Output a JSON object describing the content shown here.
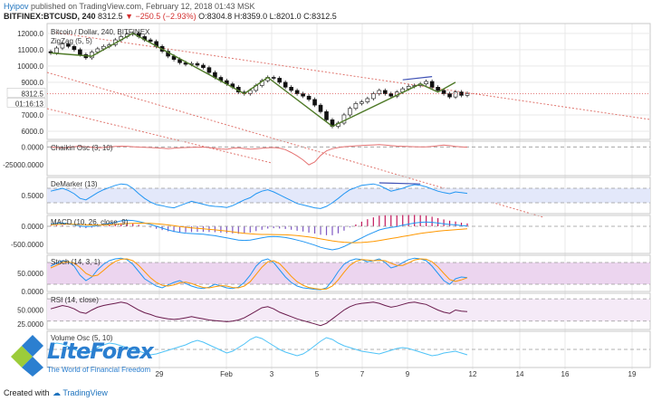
{
  "header": {
    "author": "Hyipov",
    "published_text": "published on TradingView.com, February 12, 2018 01:43 MSK",
    "symbol": "BITFINEX:BTCUSD, 240",
    "last": "8312.5",
    "change": "−250.5 (−2.93%)",
    "ohlc": "O:8304.8 H:8359.0 L:8201.0 C:8312.5"
  },
  "footer": {
    "created_with": "Created with",
    "brand": "TradingView"
  },
  "logo": {
    "name": "LiteForex",
    "tagline": "The World of Financial Freedom"
  },
  "colors": {
    "grid": "#e9e9e9",
    "channel": "#e0766f",
    "trendline": "#4f7a28",
    "osc_blue": "#2196f3",
    "osc_orange": "#ff9800",
    "osc_purple": "#8e24aa",
    "rsi": "#6a1b4d",
    "chaikin": "#e57373",
    "fill_blue": "#e3e8fa",
    "fill_purple": "#ecd5ef"
  },
  "chart_data": {
    "type": "candlestick",
    "x_ticks": [
      "29",
      "Feb",
      "3",
      "5",
      "7",
      "9",
      "12",
      "14",
      "16",
      "19"
    ],
    "price": {
      "title": "Bitcoin / Dollar, 240, BITFINEX",
      "marker_label": "ZigZag (5, 5)",
      "ylim": [
        5500,
        12600
      ],
      "y_ticks": [
        "12000.0",
        "11000.0",
        "10000.0",
        "9000.0",
        "8312.5",
        "01:16:13",
        "7000.0",
        "6000.0"
      ],
      "last_price": 8312.5,
      "countdown": "01:16:13",
      "closes": [
        10800,
        11100,
        11350,
        11200,
        11000,
        10700,
        10500,
        10850,
        11050,
        11200,
        11300,
        11600,
        11800,
        11950,
        12000,
        11800,
        11600,
        11500,
        11200,
        10900,
        10600,
        10400,
        10200,
        10100,
        10150,
        10050,
        9900,
        9600,
        9300,
        9100,
        8900,
        8700,
        8400,
        8300,
        8500,
        8800,
        9100,
        9300,
        9250,
        9000,
        8700,
        8500,
        8300,
        8150,
        7950,
        7600,
        7200,
        6700,
        6300,
        6500,
        7000,
        7400,
        7700,
        7800,
        8000,
        8300,
        8500,
        8300,
        8150,
        8400,
        8600,
        8750,
        8800,
        8900,
        9050,
        8700,
        8500,
        8300,
        8100,
        8400,
        8200,
        8312.5
      ],
      "zigzag": [
        [
          0,
          10800
        ],
        [
          7,
          10600
        ],
        [
          14,
          12000
        ],
        [
          33,
          8300
        ],
        [
          37,
          9300
        ],
        [
          48,
          6300
        ],
        [
          63,
          8900
        ],
        [
          66,
          8400
        ],
        [
          69,
          9000
        ]
      ]
    },
    "chaikin": {
      "label": "Chaikin Osc (3, 10)",
      "y_ticks": [
        "0.0000",
        "-25000.0000"
      ],
      "ylim": [
        -40000,
        8000
      ],
      "values": [
        0,
        -900,
        -1300,
        -700,
        400,
        900,
        300,
        -500,
        -1200,
        -800,
        200,
        700,
        1100,
        900,
        300,
        -200,
        -500,
        -900,
        -1300,
        -1900,
        -2500,
        -1700,
        -1200,
        -900,
        -600,
        -300,
        -200,
        -900,
        -1700,
        -2800,
        -3300,
        -1800,
        -1200,
        -2200,
        -3100,
        -2600,
        -1900,
        -1200,
        -900,
        -1600,
        -3800,
        -7800,
        -12500,
        -18000,
        -25000,
        -21000,
        -12000,
        -5500,
        -2500,
        -900,
        300,
        900,
        1600,
        2100,
        2500,
        2800,
        3200,
        2600,
        1800,
        1200,
        900,
        600,
        300,
        200,
        100,
        800,
        1700,
        2600,
        1800,
        700,
        0,
        -300
      ]
    },
    "demarker": {
      "label": "DeMarker (13)",
      "y_ticks": [
        "0.5000"
      ],
      "ylim": [
        0,
        1
      ],
      "band": [
        0.3,
        0.7
      ],
      "values": [
        0.62,
        0.66,
        0.7,
        0.64,
        0.55,
        0.42,
        0.38,
        0.48,
        0.58,
        0.66,
        0.72,
        0.78,
        0.82,
        0.8,
        0.7,
        0.55,
        0.42,
        0.32,
        0.25,
        0.22,
        0.18,
        0.16,
        0.22,
        0.28,
        0.34,
        0.3,
        0.26,
        0.22,
        0.2,
        0.19,
        0.17,
        0.22,
        0.3,
        0.38,
        0.44,
        0.55,
        0.62,
        0.66,
        0.6,
        0.52,
        0.44,
        0.36,
        0.28,
        0.24,
        0.2,
        0.16,
        0.14,
        0.2,
        0.3,
        0.42,
        0.55,
        0.66,
        0.72,
        0.78,
        0.8,
        0.82,
        0.78,
        0.7,
        0.62,
        0.66,
        0.7,
        0.76,
        0.8,
        0.78,
        0.74,
        0.68,
        0.62,
        0.58,
        0.55,
        0.6,
        0.58,
        0.56
      ]
    },
    "macd": {
      "label": "MACD (10, 26, close, 9)",
      "y_ticks": [
        "0.0000",
        "-500.0000"
      ],
      "ylim": [
        -750,
        300
      ],
      "macd": [
        60,
        80,
        90,
        70,
        40,
        10,
        -10,
        0,
        20,
        50,
        80,
        110,
        150,
        170,
        160,
        130,
        90,
        50,
        0,
        -50,
        -100,
        -140,
        -170,
        -190,
        -200,
        -210,
        -220,
        -240,
        -260,
        -290,
        -320,
        -350,
        -380,
        -390,
        -380,
        -350,
        -320,
        -290,
        -280,
        -290,
        -310,
        -340,
        -380,
        -420,
        -470,
        -520,
        -580,
        -620,
        -650,
        -620,
        -560,
        -480,
        -400,
        -320,
        -240,
        -170,
        -100,
        -60,
        -30,
        -10,
        30,
        60,
        90,
        110,
        120,
        110,
        90,
        70,
        50,
        40,
        20,
        10
      ],
      "signal": [
        40,
        50,
        60,
        62,
        58,
        50,
        42,
        36,
        35,
        38,
        44,
        52,
        64,
        75,
        83,
        87,
        86,
        80,
        69,
        55,
        37,
        17,
        -4,
        -24,
        -42,
        -57,
        -70,
        -84,
        -98,
        -115,
        -133,
        -153,
        -174,
        -193,
        -208,
        -218,
        -224,
        -226,
        -227,
        -229,
        -236,
        -245,
        -258,
        -276,
        -296,
        -320,
        -347,
        -375,
        -403,
        -426,
        -440,
        -450,
        -452,
        -447,
        -436,
        -417,
        -392,
        -365,
        -338,
        -312,
        -283,
        -254,
        -225,
        -198,
        -174,
        -154,
        -136,
        -120,
        -105,
        -93,
        -80,
        -70
      ]
    },
    "stoch": {
      "label": "Stoch (14, 3, 1)",
      "y_ticks": [
        "50.0000",
        "0.0000"
      ],
      "ylim": [
        0,
        100
      ],
      "band": [
        20,
        80
      ],
      "k": [
        70,
        78,
        85,
        82,
        70,
        45,
        30,
        40,
        60,
        75,
        85,
        90,
        92,
        88,
        75,
        55,
        35,
        25,
        15,
        10,
        18,
        25,
        30,
        22,
        15,
        10,
        8,
        12,
        20,
        15,
        10,
        8,
        12,
        25,
        45,
        70,
        85,
        90,
        80,
        60,
        40,
        25,
        15,
        10,
        8,
        6,
        5,
        10,
        30,
        55,
        75,
        85,
        90,
        88,
        82,
        85,
        90,
        80,
        65,
        70,
        80,
        88,
        92,
        90,
        85,
        70,
        50,
        30,
        20,
        35,
        40,
        38
      ],
      "d": [
        65,
        72,
        80,
        82,
        78,
        66,
        50,
        42,
        45,
        58,
        72,
        83,
        89,
        90,
        85,
        72,
        55,
        38,
        25,
        17,
        15,
        18,
        24,
        26,
        22,
        16,
        11,
        10,
        13,
        16,
        15,
        11,
        10,
        15,
        27,
        47,
        67,
        82,
        85,
        77,
        60,
        42,
        27,
        17,
        11,
        8,
        6,
        7,
        15,
        32,
        53,
        72,
        83,
        88,
        87,
        85,
        86,
        85,
        78,
        72,
        72,
        79,
        87,
        90,
        89,
        82,
        68,
        50,
        33,
        28,
        32,
        38
      ]
    },
    "rsi": {
      "label": "RSI (14, close)",
      "y_ticks": [
        "50.0000",
        "25.0000"
      ],
      "ylim": [
        15,
        80
      ],
      "band": [
        30,
        70
      ],
      "values": [
        52,
        55,
        58,
        56,
        52,
        46,
        44,
        50,
        55,
        58,
        60,
        62,
        64,
        62,
        56,
        50,
        45,
        42,
        38,
        36,
        34,
        33,
        34,
        36,
        38,
        36,
        34,
        32,
        31,
        30,
        29,
        30,
        32,
        36,
        42,
        48,
        54,
        56,
        52,
        46,
        42,
        38,
        34,
        31,
        28,
        25,
        22,
        26,
        34,
        42,
        50,
        56,
        60,
        62,
        63,
        64,
        62,
        58,
        55,
        57,
        60,
        63,
        64,
        62,
        60,
        55,
        50,
        46,
        44,
        50,
        48,
        47
      ]
    },
    "volume_osc": {
      "label": "Volume Osc (5, 10)",
      "ylim": [
        -40,
        40
      ],
      "values": [
        10,
        14,
        12,
        6,
        0,
        -6,
        -10,
        -4,
        4,
        10,
        14,
        12,
        8,
        4,
        0,
        -4,
        -8,
        -12,
        -10,
        -6,
        -2,
        2,
        6,
        10,
        16,
        20,
        16,
        10,
        4,
        -2,
        -8,
        -4,
        4,
        12,
        22,
        28,
        24,
        16,
        8,
        0,
        -6,
        -10,
        -14,
        -10,
        -2,
        8,
        18,
        26,
        22,
        14,
        8,
        4,
        0,
        -4,
        -6,
        -8,
        -10,
        -6,
        -2,
        2,
        4,
        2,
        -2,
        -6,
        -10,
        -14,
        -12,
        -8,
        -6,
        -4,
        -8,
        -12
      ]
    }
  }
}
